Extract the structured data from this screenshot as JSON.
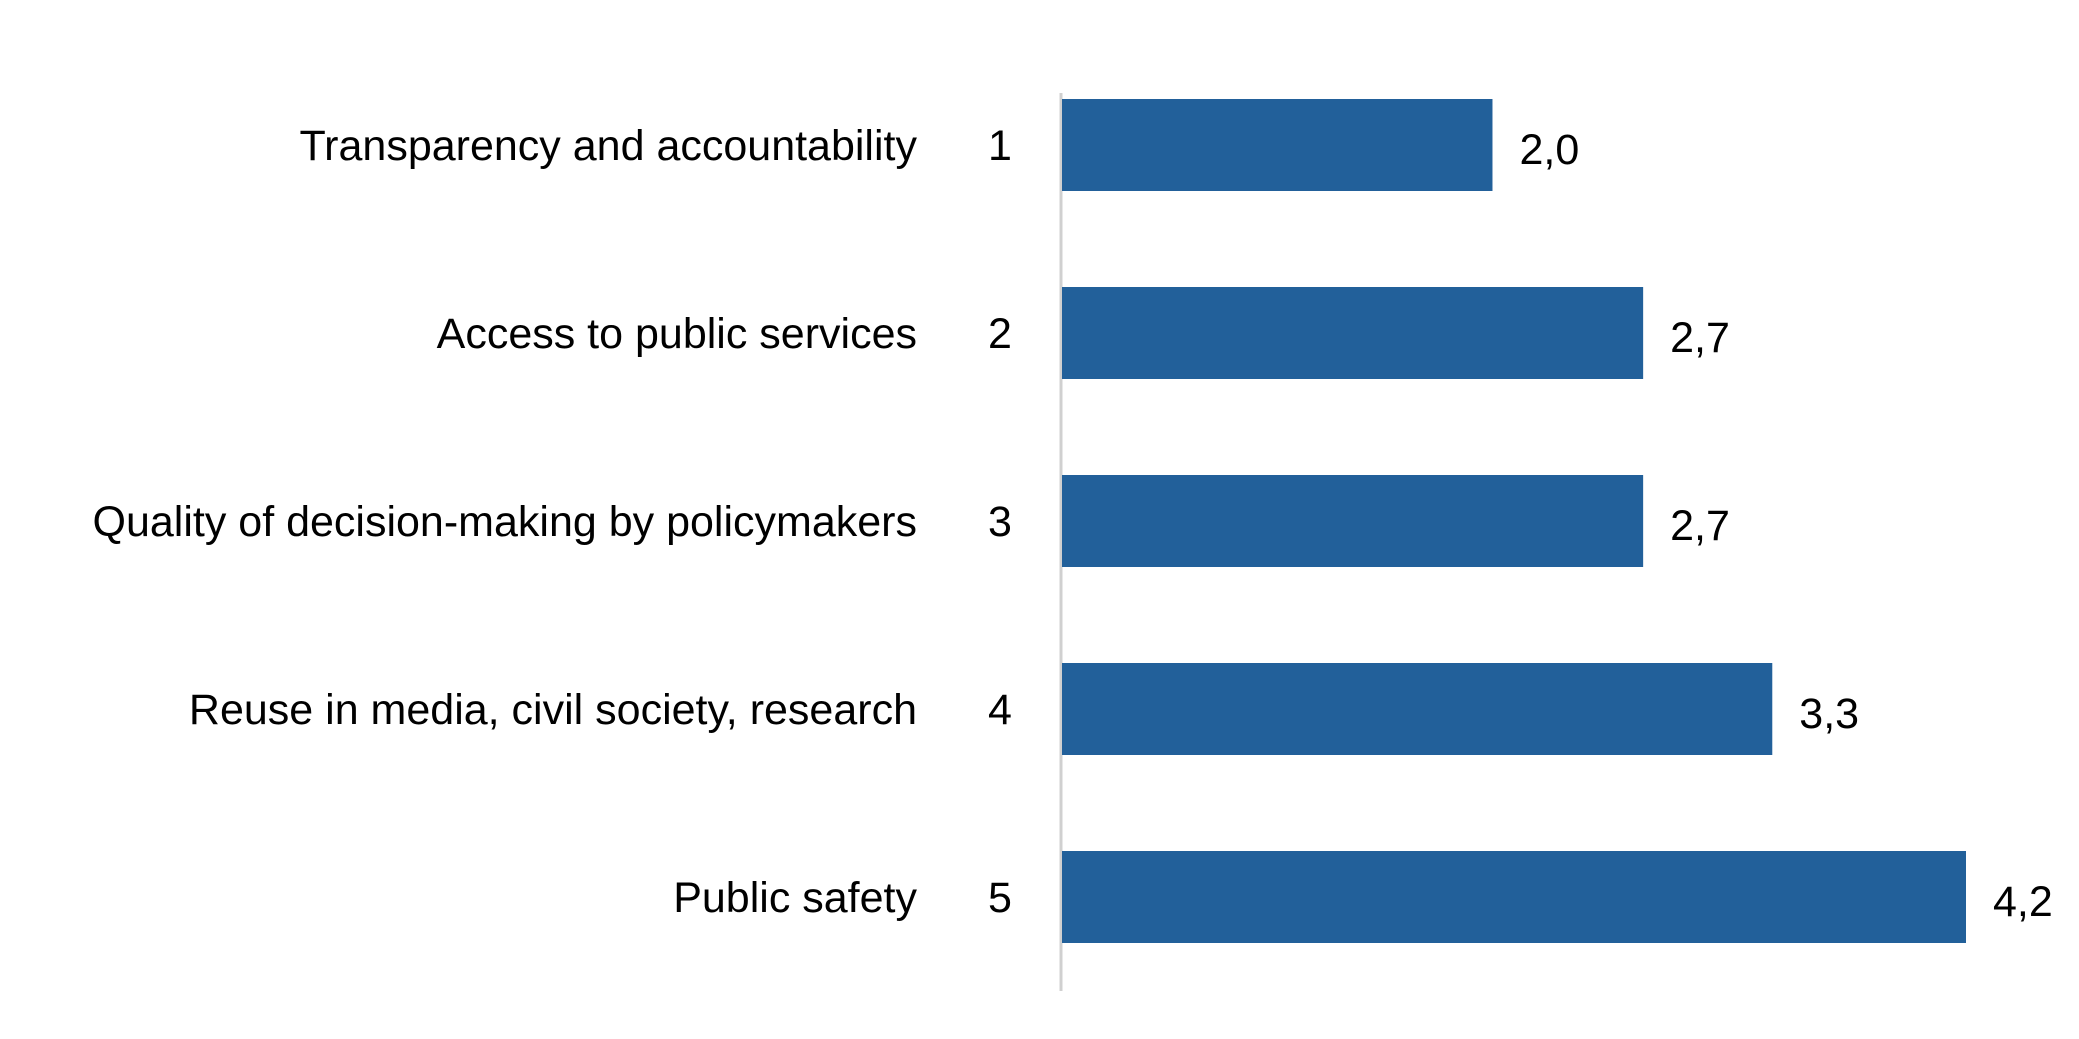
{
  "chart_data": {
    "type": "bar",
    "orientation": "horizontal",
    "categories": [
      "Transparency and accountability",
      "Access to public services",
      "Quality of decision-making by policymakers",
      "Reuse in media, civil society, research",
      "Public safety"
    ],
    "ranks": [
      "1",
      "2",
      "3",
      "4",
      "5"
    ],
    "values": [
      2.0,
      2.7,
      2.7,
      3.3,
      4.2
    ],
    "value_labels": [
      "2,0",
      "2,7",
      "2,7",
      "3,3",
      "4,2"
    ],
    "xlim": [
      0,
      4.2
    ],
    "grid": false,
    "legend": "none",
    "colors": {
      "bar": "#22609A",
      "axis": "#D0D0D0",
      "text": "#000000"
    }
  }
}
